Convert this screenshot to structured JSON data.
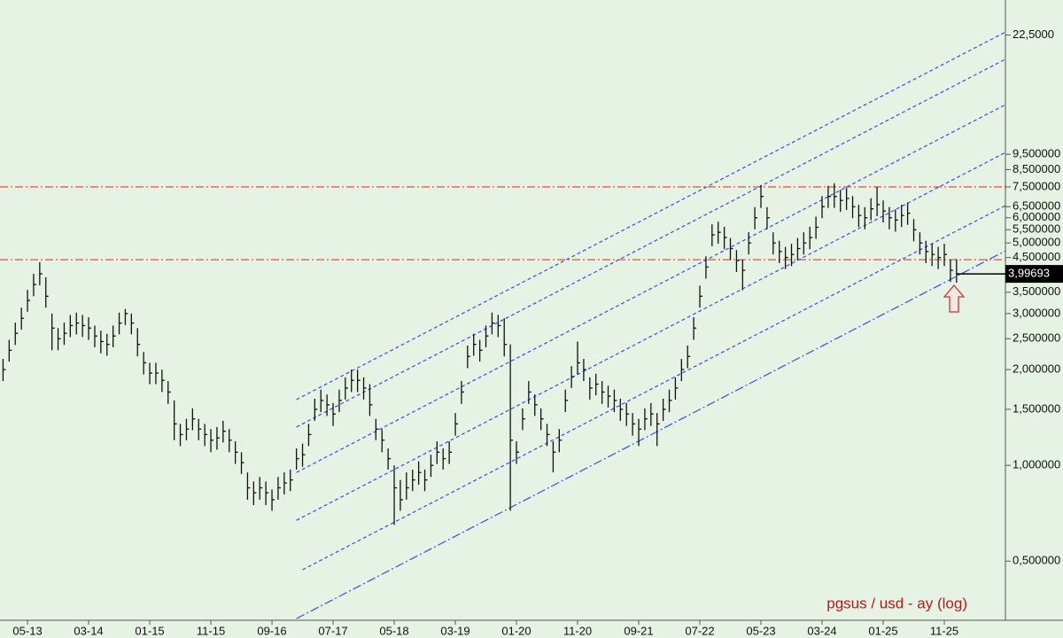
{
  "chart_data": {
    "type": "ohlc",
    "caption": "pgsus / usd - ay (log)",
    "log_scale": true,
    "ylim": [
      0.326,
      29
    ],
    "yticks": [
      {
        "value": 22.5,
        "label": "22,5000"
      },
      {
        "value": 9.5,
        "label": "9,500000"
      },
      {
        "value": 8.5,
        "label": "8,500000"
      },
      {
        "value": 7.5,
        "label": "7,500000"
      },
      {
        "value": 6.5,
        "label": "6,500000"
      },
      {
        "value": 6,
        "label": "6,000000"
      },
      {
        "value": 5.5,
        "label": "5,500000"
      },
      {
        "value": 5,
        "label": "5,000000"
      },
      {
        "value": 4.5,
        "label": "4,500000"
      },
      {
        "value": 3.5,
        "label": "3,500000"
      },
      {
        "value": 3,
        "label": "3,000000"
      },
      {
        "value": 2.5,
        "label": "2,500000"
      },
      {
        "value": 2,
        "label": "2,000000"
      },
      {
        "value": 1.5,
        "label": "1,500000"
      },
      {
        "value": 1,
        "label": "1,000000"
      },
      {
        "value": 0.5,
        "label": "0,500000"
      }
    ],
    "xlim": [
      -0.5,
      164
    ],
    "categories": [
      null,
      null,
      null,
      null,
      "05-13",
      null,
      null,
      null,
      null,
      null,
      null,
      null,
      null,
      null,
      "03-14",
      null,
      null,
      null,
      null,
      null,
      null,
      null,
      null,
      null,
      "01-15",
      null,
      null,
      null,
      null,
      null,
      null,
      null,
      null,
      null,
      "11-15",
      null,
      null,
      null,
      null,
      null,
      null,
      null,
      null,
      null,
      "09-16",
      null,
      null,
      null,
      null,
      null,
      null,
      null,
      null,
      null,
      "07-17",
      null,
      null,
      null,
      null,
      null,
      null,
      null,
      null,
      null,
      "05-18",
      null,
      null,
      null,
      null,
      null,
      null,
      null,
      null,
      null,
      "03-19",
      null,
      null,
      null,
      null,
      null,
      null,
      null,
      null,
      null,
      "01-20",
      null,
      null,
      null,
      null,
      null,
      null,
      null,
      null,
      null,
      "11-20",
      null,
      null,
      null,
      null,
      null,
      null,
      null,
      null,
      null,
      "09-21",
      null,
      null,
      null,
      null,
      null,
      null,
      null,
      null,
      null,
      "07-22",
      null,
      null,
      null,
      null,
      null,
      null,
      null,
      null,
      null,
      "05-23",
      null,
      null,
      null,
      null,
      null,
      null,
      null,
      null,
      null,
      "03-24",
      null,
      null,
      null,
      null,
      null,
      null,
      null,
      null,
      null,
      "01-25",
      null,
      null,
      null,
      null,
      null,
      null,
      null,
      null,
      null,
      "11-25",
      null,
      null
    ],
    "high": [
      2.16,
      2.48,
      2.81,
      3.13,
      3.56,
      4.0,
      4.35,
      3.9,
      3.0,
      2.7,
      2.81,
      2.97,
      3.02,
      2.97,
      2.92,
      2.75,
      2.65,
      2.59,
      2.75,
      3.02,
      3.1,
      3.0,
      2.7,
      2.27,
      2.1,
      2.1,
      2.0,
      1.84,
      1.6,
      1.35,
      1.4,
      1.51,
      1.4,
      1.35,
      1.3,
      1.32,
      1.38,
      1.3,
      1.19,
      1.1,
      0.95,
      0.89,
      0.92,
      0.89,
      0.84,
      0.92,
      0.95,
      0.97,
      1.13,
      1.17,
      1.35,
      1.62,
      1.73,
      1.67,
      1.57,
      1.73,
      1.89,
      2.0,
      2.0,
      1.89,
      1.8,
      1.4,
      1.3,
      1.13,
      1.0,
      0.9,
      0.95,
      0.97,
      1.03,
      0.97,
      1.08,
      1.19,
      1.13,
      1.19,
      1.46,
      1.84,
      2.38,
      2.59,
      2.48,
      2.75,
      3.02,
      2.97,
      2.9,
      2.4,
      1.19,
      1.51,
      1.84,
      1.67,
      1.51,
      1.35,
      1.19,
      1.3,
      1.73,
      2.05,
      2.45,
      2.16,
      1.89,
      1.94,
      1.84,
      1.78,
      1.73,
      1.62,
      1.57,
      1.46,
      1.4,
      1.51,
      1.57,
      1.46,
      1.62,
      1.73,
      1.89,
      2.16,
      2.38,
      2.92,
      3.67,
      4.54,
      5.72,
      5.83,
      5.62,
      5.18,
      4.75,
      4.43,
      5.4,
      6.48,
      7.6,
      6.48,
      5.4,
      5.08,
      4.86,
      4.97,
      5.18,
      5.4,
      5.62,
      6.05,
      7.02,
      7.56,
      7.7,
      7.34,
      7.45,
      7.02,
      6.59,
      6.48,
      6.91,
      7.5,
      6.8,
      6.48,
      6.37,
      6.59,
      6.7,
      5.94,
      5.4,
      5.08,
      4.97,
      4.86,
      4.97,
      4.43,
      4.45
    ],
    "low": [
      1.84,
      2.12,
      2.39,
      2.67,
      3.04,
      3.4,
      3.68,
      3.13,
      2.3,
      2.3,
      2.39,
      2.53,
      2.58,
      2.53,
      2.48,
      2.35,
      2.25,
      2.21,
      2.35,
      2.58,
      2.76,
      2.58,
      2.2,
      1.93,
      1.8,
      1.8,
      1.7,
      1.56,
      1.2,
      1.15,
      1.2,
      1.29,
      1.2,
      1.15,
      1.1,
      1.12,
      1.18,
      1.1,
      1.01,
      0.94,
      0.78,
      0.75,
      0.78,
      0.75,
      0.72,
      0.78,
      0.81,
      0.83,
      0.97,
      0.99,
      1.15,
      1.38,
      1.47,
      1.43,
      1.33,
      1.47,
      1.61,
      1.7,
      1.7,
      1.61,
      1.43,
      1.2,
      1.1,
      0.97,
      0.65,
      0.72,
      0.78,
      0.83,
      0.87,
      0.83,
      0.92,
      1.01,
      0.97,
      1.01,
      1.24,
      1.56,
      2.02,
      2.21,
      2.12,
      2.35,
      2.58,
      2.53,
      2.2,
      0.72,
      1.01,
      1.29,
      1.56,
      1.43,
      1.29,
      1.15,
      0.95,
      1.1,
      1.47,
      1.75,
      1.93,
      1.84,
      1.61,
      1.66,
      1.56,
      1.52,
      1.47,
      1.38,
      1.33,
      1.24,
      1.15,
      1.29,
      1.33,
      1.15,
      1.38,
      1.47,
      1.61,
      1.84,
      2.02,
      2.48,
      3.13,
      3.86,
      4.88,
      4.97,
      4.78,
      4.42,
      4.05,
      3.55,
      4.6,
      5.52,
      6.44,
      5.52,
      4.6,
      4.32,
      4.14,
      4.23,
      4.42,
      4.6,
      4.78,
      5.15,
      5.98,
      6.44,
      6.44,
      6.26,
      6.35,
      5.98,
      5.61,
      5.52,
      5.89,
      6.07,
      5.8,
      5.52,
      5.43,
      5.61,
      5.7,
      5.06,
      4.6,
      4.32,
      4.23,
      4.14,
      4.23,
      3.77,
      3.75
    ],
    "close": [
      2.0,
      2.3,
      2.6,
      2.9,
      3.3,
      3.7,
      4.0,
      3.4,
      2.7,
      2.5,
      2.6,
      2.75,
      2.8,
      2.75,
      2.7,
      2.55,
      2.45,
      2.4,
      2.55,
      2.8,
      3.0,
      2.8,
      2.4,
      2.1,
      1.95,
      1.95,
      1.85,
      1.7,
      1.35,
      1.25,
      1.3,
      1.4,
      1.3,
      1.25,
      1.2,
      1.22,
      1.28,
      1.2,
      1.1,
      1.02,
      0.85,
      0.82,
      0.85,
      0.82,
      0.78,
      0.85,
      0.88,
      0.9,
      1.05,
      1.08,
      1.25,
      1.5,
      1.6,
      1.55,
      1.45,
      1.6,
      1.75,
      1.85,
      1.85,
      1.75,
      1.55,
      1.3,
      1.2,
      1.05,
      0.85,
      0.78,
      0.85,
      0.9,
      0.95,
      0.9,
      1.0,
      1.1,
      1.05,
      1.1,
      1.35,
      1.7,
      2.2,
      2.4,
      2.3,
      2.55,
      2.8,
      2.75,
      2.4,
      1.2,
      1.1,
      1.4,
      1.7,
      1.55,
      1.4,
      1.25,
      1.1,
      1.2,
      1.6,
      1.9,
      2.1,
      2.0,
      1.75,
      1.8,
      1.7,
      1.65,
      1.6,
      1.5,
      1.45,
      1.35,
      1.3,
      1.4,
      1.45,
      1.35,
      1.5,
      1.6,
      1.75,
      2.0,
      2.2,
      2.7,
      3.4,
      4.2,
      5.3,
      5.4,
      5.2,
      4.8,
      4.4,
      4.1,
      5.0,
      6.0,
      7.0,
      6.0,
      5.0,
      4.7,
      4.5,
      4.6,
      4.8,
      5.0,
      5.2,
      5.6,
      6.5,
      7.0,
      7.0,
      6.8,
      6.9,
      6.5,
      6.1,
      6.0,
      6.4,
      6.6,
      6.3,
      6.0,
      5.9,
      6.1,
      6.2,
      5.5,
      5.0,
      4.7,
      4.6,
      4.5,
      4.6,
      4.1,
      3.99693
    ],
    "bar_color": "#111111",
    "last_price": {
      "value": 3.99693,
      "label": "3,99693"
    },
    "hlines": [
      {
        "value": 7.5,
        "color": "#e0402a"
      },
      {
        "value": 4.43,
        "color": "#e0402a"
      }
    ],
    "channel_lines": [
      {
        "x": [
          48,
          164
        ],
        "y": [
          1.61,
          23.0
        ],
        "style": "dashed",
        "color": "#3a4ee0"
      },
      {
        "x": [
          48,
          164
        ],
        "y": [
          1.32,
          18.9
        ],
        "style": "dashed",
        "color": "#3a4ee0"
      },
      {
        "x": [
          48,
          164
        ],
        "y": [
          0.95,
          13.6
        ],
        "style": "dashed",
        "color": "#3a4ee0"
      },
      {
        "x": [
          48,
          164
        ],
        "y": [
          0.672,
          9.62
        ],
        "style": "dashed",
        "color": "#3a4ee0"
      },
      {
        "x": [
          49,
          164
        ],
        "y": [
          0.47,
          6.55
        ],
        "style": "dashed",
        "color": "#3a4ee0"
      },
      {
        "x": [
          48,
          164
        ],
        "y": [
          0.33,
          4.72
        ],
        "style": "dash-dot",
        "color": "#3a4ee0"
      }
    ]
  }
}
